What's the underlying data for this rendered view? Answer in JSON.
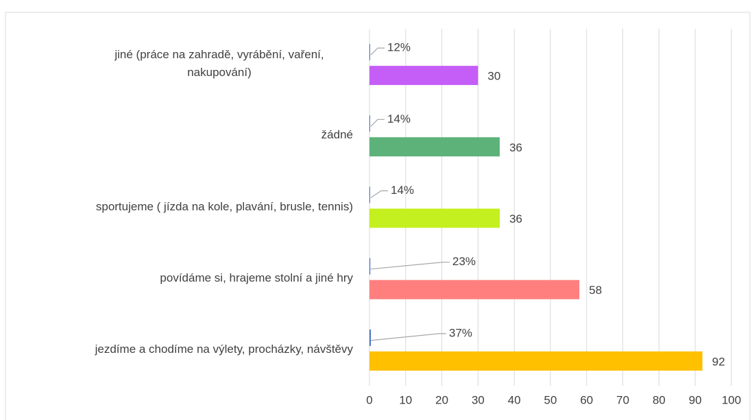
{
  "chart_data": {
    "type": "barh",
    "categories": [
      "jiné (práce na zahradě, vyrábění, vaření, nakupování)",
      "žádné ",
      "sportujeme ( jízda na kole, plavání, brusle, tennis)",
      "povídáme si, hrajeme stolní a jiné hry",
      "jezdíme  a chodíme na výlety, procházky, návštěvy"
    ],
    "series": [
      {
        "colors": [
          "#c55ef7",
          "#5db27a",
          "#c4f01f",
          "#ff7f7f",
          "#ffc000"
        ],
        "values": [
          30,
          36,
          36,
          58,
          92
        ]
      },
      {
        "color": "#4472c4",
        "values": [
          0.12,
          0.14,
          0.14,
          0.23,
          0.37
        ],
        "value_labels": [
          "12%",
          "14%",
          "14%",
          "23%",
          "37%"
        ]
      }
    ],
    "xlim": [
      0,
      100
    ],
    "xticks": [
      0,
      10,
      20,
      30,
      40,
      50,
      60,
      70,
      80,
      90,
      100
    ],
    "grid": true
  }
}
